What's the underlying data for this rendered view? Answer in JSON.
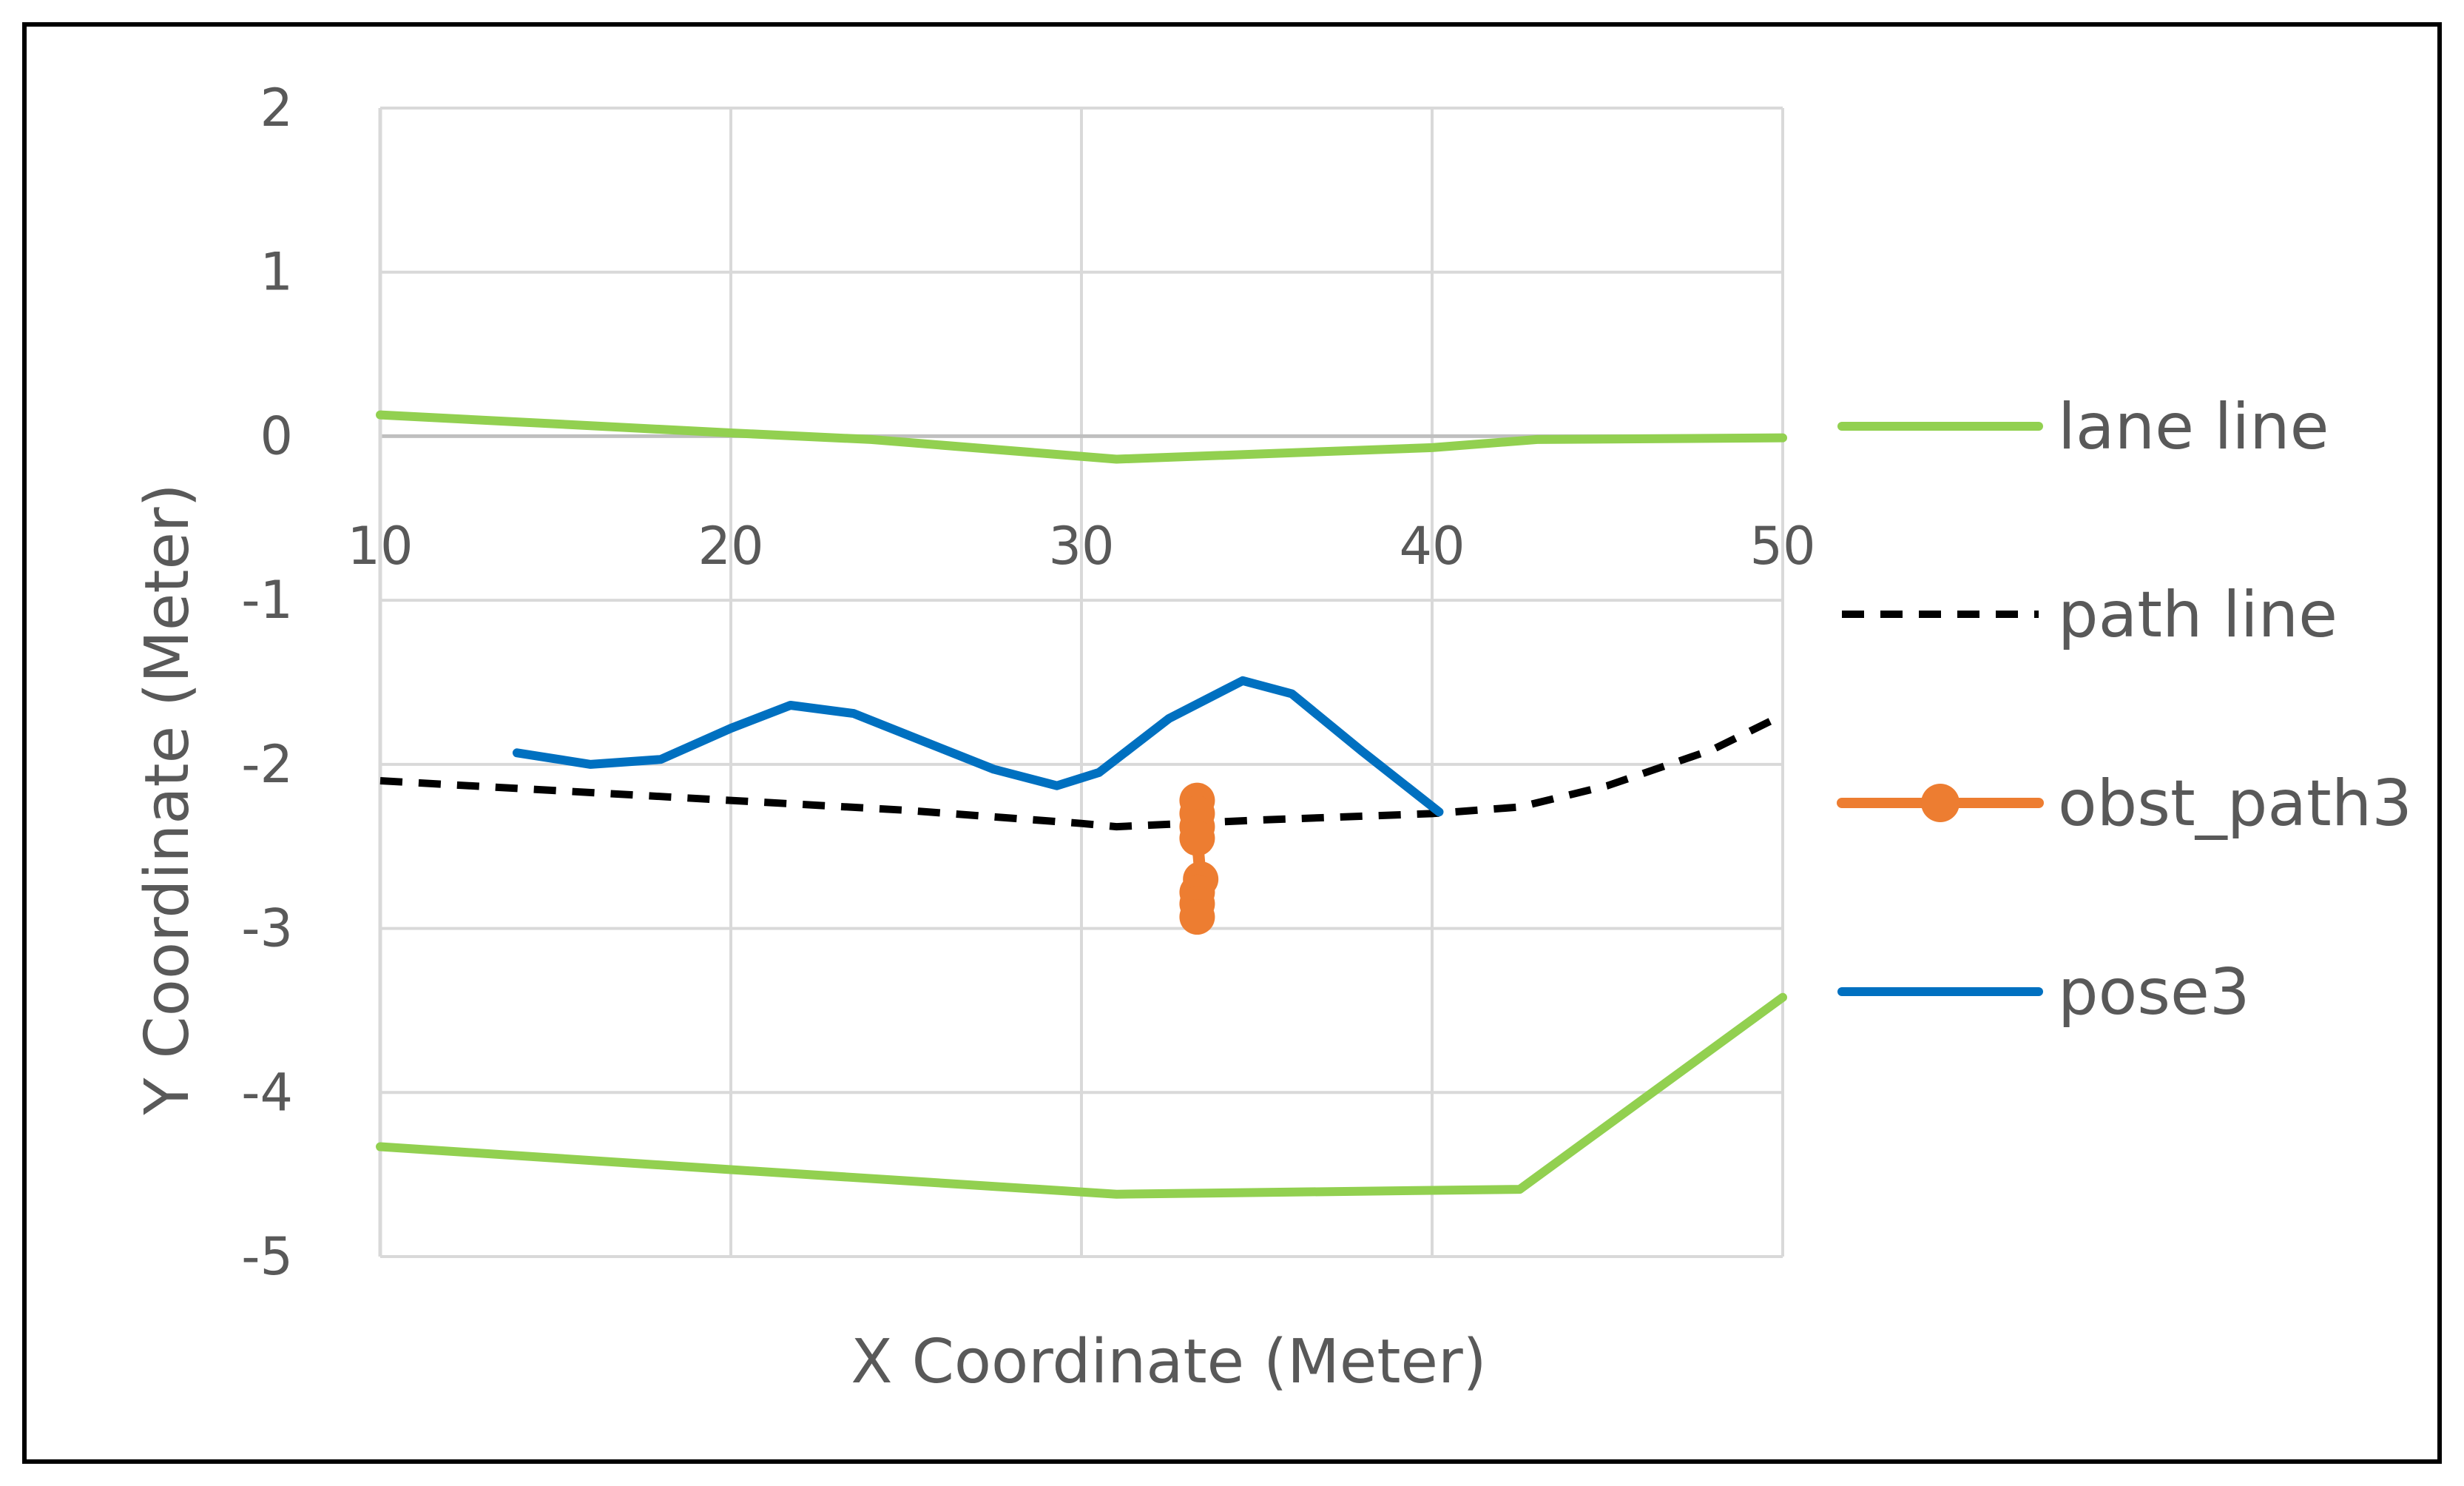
{
  "chart_data": {
    "type": "line",
    "title": "",
    "xlabel": "X Coordinate (Meter)",
    "ylabel": "Y Coordinate (Meter)",
    "xlim": [
      10,
      50
    ],
    "ylim": [
      -5,
      2
    ],
    "xticks": [
      10,
      20,
      30,
      40,
      50
    ],
    "yticks": [
      2,
      1,
      0,
      -1,
      -2,
      -3,
      -4,
      -5
    ],
    "grid": true,
    "legend_position": "right",
    "series": [
      {
        "name": "lane line",
        "color": "#92d050",
        "style": "solid",
        "segments": [
          [
            [
              10,
              0.13
            ],
            [
              20,
              0.02
            ],
            [
              24,
              -0.02
            ],
            [
              31,
              -0.14
            ],
            [
              40,
              -0.07
            ],
            [
              43,
              -0.02
            ],
            [
              50,
              -0.01
            ]
          ],
          [
            [
              10,
              -4.33
            ],
            [
              20,
              -4.47
            ],
            [
              31,
              -4.62
            ],
            [
              42.5,
              -4.59
            ],
            [
              50,
              -3.42
            ]
          ]
        ]
      },
      {
        "name": "path line",
        "color": "#000000",
        "style": "dashed",
        "segments": [
          [
            [
              10,
              -2.1
            ],
            [
              15,
              -2.16
            ],
            [
              20,
              -2.22
            ],
            [
              25,
              -2.28
            ],
            [
              30,
              -2.36
            ],
            [
              31,
              -2.38
            ],
            [
              35,
              -2.34
            ],
            [
              40,
              -2.3
            ],
            [
              42.5,
              -2.26
            ],
            [
              45,
              -2.13
            ],
            [
              48,
              -1.91
            ],
            [
              50,
              -1.7
            ]
          ]
        ]
      },
      {
        "name": "obst_path3",
        "color": "#ed7d31",
        "style": "solid-markers",
        "segments": [
          [
            [
              33.3,
              -2.22
            ],
            [
              33.3,
              -2.3
            ],
            [
              33.3,
              -2.38
            ],
            [
              33.3,
              -2.45
            ],
            [
              33.4,
              -2.7
            ],
            [
              33.3,
              -2.78
            ],
            [
              33.3,
              -2.85
            ],
            [
              33.3,
              -2.93
            ]
          ]
        ]
      },
      {
        "name": "pose3",
        "color": "#0070c0",
        "style": "solid",
        "segments": [
          [
            [
              13.9,
              -1.93
            ],
            [
              16,
              -2.0
            ],
            [
              18,
              -1.97
            ],
            [
              20,
              -1.78
            ],
            [
              21.7,
              -1.64
            ],
            [
              23.5,
              -1.69
            ],
            [
              25.5,
              -1.86
            ],
            [
              27.5,
              -2.03
            ],
            [
              29.3,
              -2.13
            ],
            [
              30.5,
              -2.05
            ],
            [
              32.5,
              -1.72
            ],
            [
              34.6,
              -1.49
            ],
            [
              36,
              -1.57
            ],
            [
              38,
              -1.92
            ],
            [
              40.2,
              -2.29
            ]
          ]
        ]
      }
    ]
  }
}
